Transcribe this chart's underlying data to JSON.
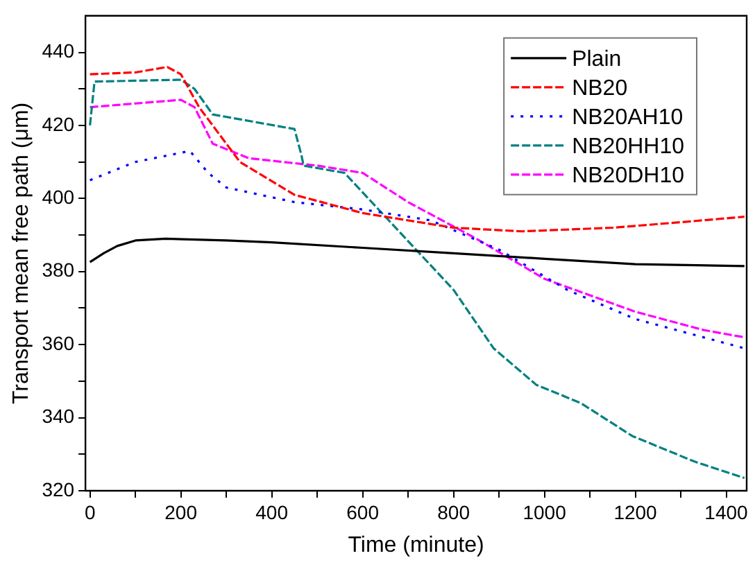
{
  "chart_data": {
    "type": "line",
    "xlabel": "Time (minute)",
    "ylabel": "Transport mean free path (μm)",
    "xlim": [
      -10,
      1445
    ],
    "ylim": [
      320,
      450
    ],
    "xticks": [
      0,
      {
        "value": 100,
        "label": null
      },
      200,
      {
        "value": 300,
        "label": null
      },
      400,
      {
        "value": 500,
        "label": null
      },
      600,
      {
        "value": 700,
        "label": null
      },
      800,
      {
        "value": 900,
        "label": null
      },
      1000,
      {
        "value": 1100,
        "label": null
      },
      1200,
      {
        "value": 1300,
        "label": null
      },
      1400
    ],
    "yticks": [
      320,
      {
        "value": 330,
        "label": null
      },
      340,
      {
        "value": 350,
        "label": null
      },
      360,
      {
        "value": 370,
        "label": null
      },
      380,
      {
        "value": 390,
        "label": null
      },
      400,
      {
        "value": 410,
        "label": null
      },
      420,
      {
        "value": 430,
        "label": null
      },
      440
    ],
    "grid": false,
    "legend": "top right",
    "marker": "none",
    "series": [
      {
        "name": "Plain",
        "color": "#000000",
        "line_style": "solid",
        "x": [
          0,
          30,
          60,
          100,
          166,
          300,
          400,
          600,
          800,
          1000,
          1200,
          1440
        ],
        "values": [
          382.6,
          385,
          387,
          388.5,
          389,
          388.5,
          388,
          386.5,
          385,
          383.5,
          382,
          381.5
        ]
      },
      {
        "name": "NB20",
        "color": "#ff0000",
        "line_style": "dashed",
        "x": [
          0,
          100,
          170,
          200,
          240,
          330,
          450,
          600,
          800,
          950,
          1150,
          1300,
          1440
        ],
        "values": [
          434,
          434.5,
          436,
          434,
          425,
          410,
          401,
          396,
          392,
          391,
          392,
          393.5,
          395
        ]
      },
      {
        "name": "NB20AH10",
        "color": "#0000ff",
        "line_style": "dotted",
        "x": [
          0,
          100,
          220,
          260,
          300,
          450,
          600,
          750,
          900,
          1050,
          1200,
          1350,
          1440
        ],
        "values": [
          405,
          410,
          413,
          407,
          403,
          399,
          397,
          394,
          386,
          375,
          367,
          362,
          359
        ]
      },
      {
        "name": "NB20HH10",
        "color": "#008080",
        "line_style": "dashed",
        "x": [
          0,
          10,
          200,
          230,
          270,
          450,
          465,
          470,
          560,
          650,
          800,
          888,
          982,
          1080,
          1193,
          1330,
          1440
        ],
        "values": [
          420,
          432,
          432.5,
          430,
          423,
          419,
          412,
          409,
          407,
          395,
          375,
          359,
          349,
          344,
          335,
          328,
          323.5
        ]
      },
      {
        "name": "NB20DH10",
        "color": "#ff00ff",
        "line_style": "dashed",
        "x": [
          0,
          200,
          230,
          270,
          350,
          500,
          600,
          700,
          850,
          1000,
          1200,
          1350,
          1440
        ],
        "values": [
          425,
          427,
          425,
          415,
          411,
          409,
          407,
          399,
          389,
          378,
          369,
          364,
          362
        ]
      }
    ]
  }
}
